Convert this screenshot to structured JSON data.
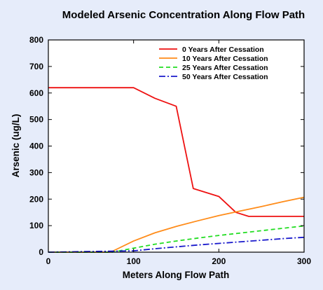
{
  "chart_data": {
    "type": "line",
    "title": "Modeled Arsenic Concentration Along Flow Path",
    "xlabel": "Meters Along Flow Path",
    "ylabel": "Arsenic (ug/L)",
    "xlim": [
      0,
      300
    ],
    "ylim": [
      0,
      800
    ],
    "xticks": [
      0,
      100,
      200,
      300
    ],
    "yticks": [
      0,
      100,
      200,
      300,
      400,
      500,
      600,
      700,
      800
    ],
    "grid": false,
    "legend_position": "top-right",
    "background_color": "#e6ecfa",
    "plot_background_color": "#ffffff",
    "series": [
      {
        "name": "0 Years After Cessation",
        "color": "#ee1111",
        "dash": "solid",
        "x": [
          0,
          100,
          125,
          150,
          170,
          200,
          220,
          235,
          300
        ],
        "y": [
          620,
          620,
          580,
          550,
          240,
          210,
          150,
          135,
          135
        ]
      },
      {
        "name": "10 Years After Cessation",
        "color": "#ff8c1a",
        "dash": "solid",
        "x": [
          0,
          73,
          100,
          125,
          150,
          175,
          200,
          225,
          250,
          275,
          300
        ],
        "y": [
          0,
          0,
          42,
          73,
          97,
          118,
          138,
          155,
          172,
          190,
          207
        ]
      },
      {
        "name": "25 Years After Cessation",
        "color": "#22dd22",
        "dash": "dash",
        "x": [
          0,
          75,
          100,
          125,
          150,
          175,
          200,
          225,
          250,
          275,
          300
        ],
        "y": [
          0,
          0,
          15,
          30,
          42,
          53,
          63,
          72,
          81,
          90,
          99
        ]
      },
      {
        "name": "50 Years After Cessation",
        "color": "#1a1acc",
        "dash": "dashdot",
        "x": [
          0,
          100,
          125,
          150,
          175,
          200,
          225,
          250,
          275,
          300
        ],
        "y": [
          0,
          5,
          13,
          20,
          27,
          33,
          39,
          45,
          51,
          56
        ]
      }
    ]
  }
}
